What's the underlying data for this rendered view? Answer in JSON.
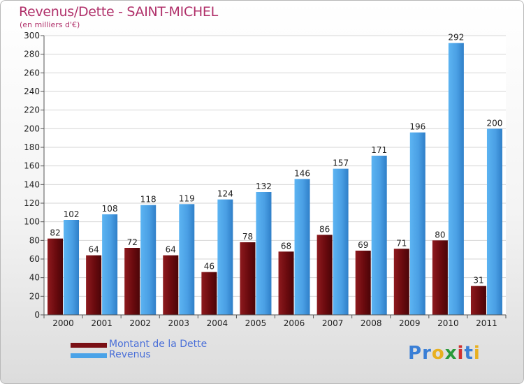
{
  "title": "Revenus/Dette - SAINT-MICHEL",
  "subtitle": "(en milliers d'€)",
  "brand": {
    "text": "Proxiti",
    "letters": [
      {
        "ch": "P",
        "color": "#3a7fd6"
      },
      {
        "ch": "r",
        "color": "#3a7fd6"
      },
      {
        "ch": "o",
        "color": "#e8b020"
      },
      {
        "ch": "x",
        "color": "#2a9a3a"
      },
      {
        "ch": "i",
        "color": "#d03030"
      },
      {
        "ch": "t",
        "color": "#3a7fd6"
      },
      {
        "ch": "i",
        "color": "#e8b020"
      }
    ]
  },
  "chart_data": {
    "type": "bar",
    "categories": [
      "2000",
      "2001",
      "2002",
      "2003",
      "2004",
      "2005",
      "2006",
      "2007",
      "2008",
      "2009",
      "2010",
      "2011"
    ],
    "series": [
      {
        "name": "Montant de la Dette",
        "values": [
          82,
          64,
          72,
          64,
          46,
          78,
          68,
          86,
          69,
          71,
          80,
          31
        ],
        "color": "#7a1015"
      },
      {
        "name": "Revenus",
        "values": [
          102,
          108,
          118,
          119,
          124,
          132,
          146,
          157,
          171,
          196,
          292,
          200
        ],
        "color": "#4aa3e8"
      }
    ],
    "ylim": [
      0,
      300
    ],
    "yticks": [
      0,
      20,
      40,
      60,
      80,
      100,
      120,
      140,
      160,
      180,
      200,
      220,
      240,
      260,
      280,
      300
    ],
    "grid": true,
    "legend_position": "bottom-left"
  }
}
